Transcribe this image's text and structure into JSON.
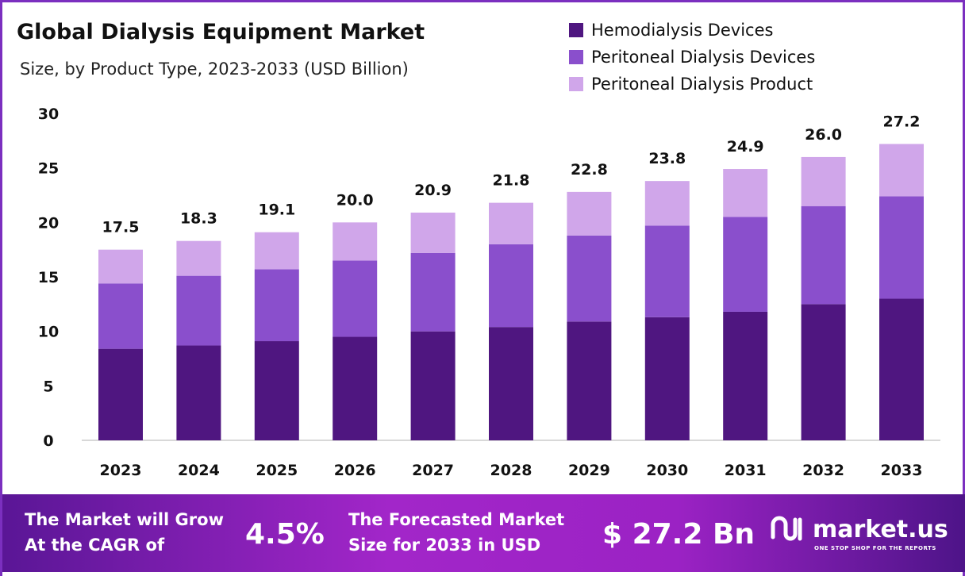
{
  "chart_data": {
    "type": "bar",
    "stacked": true,
    "title": "Global Dialysis Equipment Market",
    "subtitle": "Size, by Product Type, 2023-2033 (USD Billion)",
    "categories": [
      "2023",
      "2024",
      "2025",
      "2026",
      "2027",
      "2028",
      "2029",
      "2030",
      "2031",
      "2032",
      "2033"
    ],
    "series": [
      {
        "name": "Hemodialysis Devices",
        "color": "#4f1680",
        "values": [
          8.4,
          8.7,
          9.1,
          9.5,
          10.0,
          10.4,
          10.9,
          11.3,
          11.8,
          12.5,
          13.0
        ]
      },
      {
        "name": "Peritoneal Dialysis Devices",
        "color": "#8a4fcc",
        "values": [
          6.0,
          6.4,
          6.6,
          7.0,
          7.2,
          7.6,
          7.9,
          8.4,
          8.7,
          9.0,
          9.4
        ]
      },
      {
        "name": "Peritoneal Dialysis Product",
        "color": "#d0a6ea",
        "values": [
          3.1,
          3.2,
          3.4,
          3.5,
          3.7,
          3.8,
          4.0,
          4.1,
          4.4,
          4.5,
          4.8
        ]
      }
    ],
    "totals": [
      "17.5",
      "18.3",
      "19.1",
      "20.0",
      "20.9",
      "21.8",
      "22.8",
      "23.8",
      "24.9",
      "26.0",
      "27.2"
    ],
    "yticks": [
      "0",
      "5",
      "10",
      "15",
      "20",
      "25",
      "30"
    ],
    "ylim": [
      0,
      30
    ],
    "grid": false,
    "legend_placement": "top-right"
  },
  "footer": {
    "cagr_label_1": "The Market will Grow",
    "cagr_label_2": "At the CAGR of",
    "cagr_value": "4.5%",
    "forecast_label_1": "The Forecasted Market",
    "forecast_label_2": "Size for 2033 in USD",
    "forecast_value": "$ 27.2 Bn",
    "logo_name": "market.us",
    "logo_tagline": "ONE STOP SHOP FOR THE REPORTS"
  }
}
